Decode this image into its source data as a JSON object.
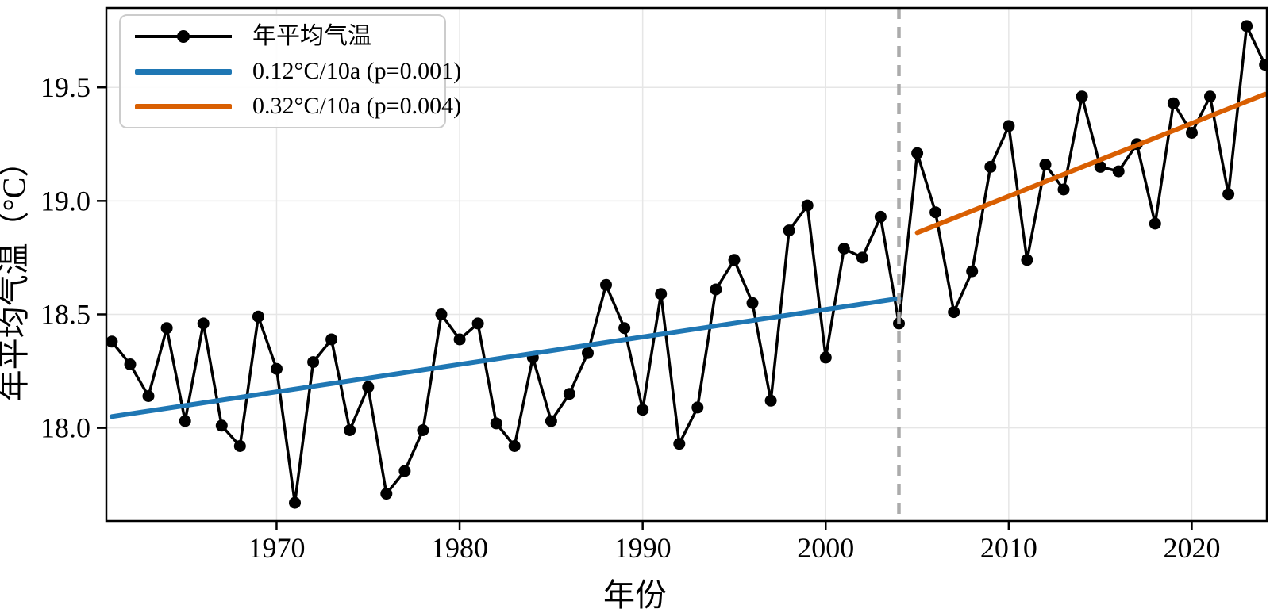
{
  "figure": {
    "background": "#ffffff"
  },
  "chart_data": {
    "type": "line",
    "title": "",
    "xlabel": "年份",
    "ylabel": "年平均气温（°C）",
    "grid": true,
    "legend_position": "upper left",
    "xlim": [
      1960.7,
      2024.1
    ],
    "ylim": [
      17.59,
      19.85
    ],
    "xticks": [
      1970,
      1980,
      1990,
      2000,
      2010,
      2020
    ],
    "xtick_labels": [
      "1970",
      "1980",
      "1990",
      "2000",
      "2010",
      "2020"
    ],
    "yticks": [
      18.0,
      18.5,
      19.0,
      19.5
    ],
    "ytick_labels": [
      "18.0",
      "18.5",
      "19.0",
      "19.5"
    ],
    "x": [
      1961,
      1962,
      1963,
      1964,
      1965,
      1966,
      1967,
      1968,
      1969,
      1970,
      1971,
      1972,
      1973,
      1974,
      1975,
      1976,
      1977,
      1978,
      1979,
      1980,
      1981,
      1982,
      1983,
      1984,
      1985,
      1986,
      1987,
      1988,
      1989,
      1990,
      1991,
      1992,
      1993,
      1994,
      1995,
      1996,
      1997,
      1998,
      1999,
      2000,
      2001,
      2002,
      2003,
      2004,
      2005,
      2006,
      2007,
      2008,
      2009,
      2010,
      2011,
      2012,
      2013,
      2014,
      2015,
      2016,
      2017,
      2018,
      2019,
      2020,
      2021,
      2022,
      2023,
      2024
    ],
    "series": [
      {
        "name": "年平均气温",
        "color": "#000000",
        "marker": "circle",
        "values": [
          18.38,
          18.28,
          18.14,
          18.44,
          18.03,
          18.46,
          18.01,
          17.92,
          18.49,
          18.26,
          17.67,
          18.29,
          18.39,
          17.99,
          18.18,
          17.71,
          17.81,
          17.99,
          18.5,
          18.39,
          18.46,
          18.02,
          17.92,
          18.31,
          18.03,
          18.15,
          18.33,
          18.63,
          18.44,
          18.08,
          18.59,
          17.93,
          18.09,
          18.61,
          18.74,
          18.55,
          18.12,
          18.87,
          18.98,
          18.31,
          18.79,
          18.75,
          18.93,
          18.46,
          19.21,
          18.95,
          18.51,
          18.69,
          19.15,
          19.33,
          18.74,
          19.16,
          19.05,
          19.46,
          19.15,
          19.13,
          19.25,
          18.9,
          19.43,
          19.3,
          19.46,
          19.03,
          19.77,
          19.6
        ]
      }
    ],
    "trends": [
      {
        "label": "0.12°C/10a (p=0.001)",
        "color": "#1f77b4",
        "x_start": 1961,
        "y_start": 18.05,
        "x_end": 2004,
        "y_end": 18.57
      },
      {
        "label": "0.32°C/10a (p=0.004)",
        "color": "#d95f02",
        "x_start": 2005,
        "y_start": 18.86,
        "x_end": 2024,
        "y_end": 19.47
      }
    ],
    "breakpoint": {
      "year": 2004,
      "color": "#ababab",
      "style": "dashed"
    },
    "grid_color": "#e6e6e6",
    "spine_color": "#000000"
  },
  "legend": {
    "series_label": "年平均气温",
    "trend1_label": "0.12°C/10a (p=0.001)",
    "trend2_label": "0.32°C/10a (p=0.004)"
  }
}
